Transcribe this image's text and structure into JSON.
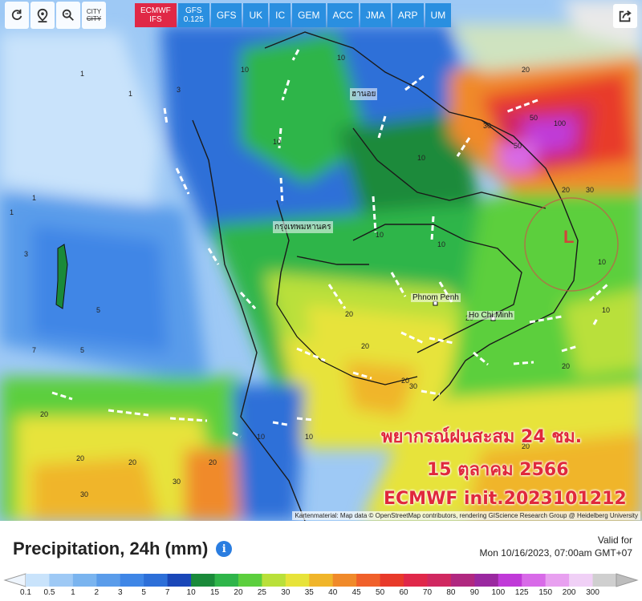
{
  "toolbar": {
    "tools": [
      {
        "name": "refresh-icon"
      },
      {
        "name": "location-pin-icon"
      },
      {
        "name": "zoom-icon"
      },
      {
        "name": "city-toggle",
        "label": "CITY"
      }
    ],
    "models": [
      {
        "label": "ECMWF",
        "sub": "IFS",
        "active": true
      },
      {
        "label": "GFS",
        "sub": "0.125",
        "active": false
      },
      {
        "label": "GFS",
        "sub": "",
        "active": false
      },
      {
        "label": "UK",
        "sub": "",
        "active": false
      },
      {
        "label": "IC",
        "sub": "",
        "active": false
      },
      {
        "label": "GEM",
        "sub": "",
        "active": false
      },
      {
        "label": "ACC",
        "sub": "",
        "active": false
      },
      {
        "label": "JMA",
        "sub": "",
        "active": false
      },
      {
        "label": "ARP",
        "sub": "",
        "active": false
      },
      {
        "label": "UM",
        "sub": "",
        "active": false
      }
    ],
    "share_icon": "share-icon"
  },
  "map": {
    "cities": [
      "กรุงเทพมหานคร",
      "Phnom Penh",
      "Ho Chi Minh",
      "ฮานอย"
    ],
    "low_pressure": "L",
    "overlay": {
      "line1": "พยากรณ์ฝนสะสม 24 ชม.",
      "line2": "15 ตุลาคม 2566",
      "line3": "ECMWF init.2023101212"
    },
    "credit": "Kartenmaterial: Map data © OpenStreetMap contributors, rendering GIScience Research Group @ Heidelberg University",
    "colors": {
      "light_blue": "#9ec9f5",
      "blue": "#3f86e6",
      "dark_blue": "#1a47b8",
      "green": "#2fb54a",
      "yellow": "#e7e33a",
      "orange": "#f08a2a",
      "red": "#e0284a",
      "magenta": "#c03ad8"
    }
  },
  "legend": {
    "title": "Precipitation, 24h (mm)",
    "info_icon": "info-icon",
    "valid_label": "Valid for",
    "valid_time": "Mon 10/16/2023, 07:00am GMT+07",
    "ticks": [
      "0.1",
      "0.5",
      "1",
      "2",
      "3",
      "5",
      "7",
      "10",
      "15",
      "20",
      "25",
      "30",
      "35",
      "40",
      "45",
      "50",
      "60",
      "70",
      "80",
      "90",
      "100",
      "125",
      "150",
      "200",
      "300"
    ],
    "colors": [
      "#c9e3fb",
      "#9ec9f5",
      "#7ab4ef",
      "#5a9cea",
      "#3f86e6",
      "#2d6fd8",
      "#1a47b8",
      "#1a8a3a",
      "#2fb54a",
      "#5ccf3e",
      "#b9e03a",
      "#e7e33a",
      "#f0b52a",
      "#f08a2a",
      "#f0602a",
      "#e83a2a",
      "#e0284a",
      "#d02860",
      "#b02880",
      "#9a28a0",
      "#c03ad8",
      "#d86ae8",
      "#e8a0f0",
      "#f0d0f6",
      "#cfcfcf"
    ]
  }
}
